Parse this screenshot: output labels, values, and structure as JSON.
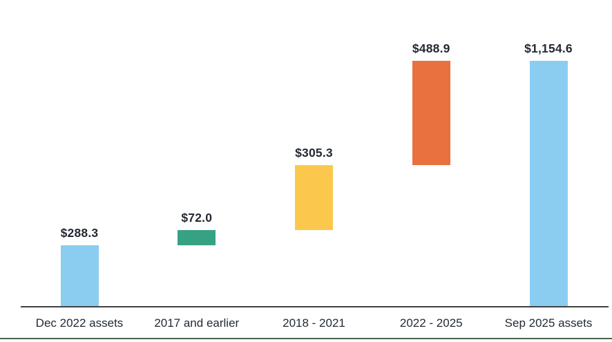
{
  "chart_data": {
    "type": "bar",
    "subtype": "waterfall",
    "title": "",
    "categories": [
      "Dec 2022 assets",
      "2017 and earlier",
      "2018 - 2021",
      "2022 - 2025",
      "Sep 2025 assets"
    ],
    "series": [
      {
        "name": "Assets",
        "values": [
          288.3,
          72.0,
          305.3,
          488.9,
          1154.6
        ]
      }
    ],
    "bars": [
      {
        "category": "Dec 2022 assets",
        "value": 288.3,
        "label": "$288.3",
        "kind": "total",
        "color": "#8BCDF0"
      },
      {
        "category": "2017 and earlier",
        "value": 72.0,
        "label": "$72.0",
        "kind": "increase",
        "color": "#37A183"
      },
      {
        "category": "2018 - 2021",
        "value": 305.3,
        "label": "$305.3",
        "kind": "increase",
        "color": "#FBC84D"
      },
      {
        "category": "2022 - 2025",
        "value": 488.9,
        "label": "$488.9",
        "kind": "increase",
        "color": "#E97140"
      },
      {
        "category": "Sep 2025 assets",
        "value": 1154.6,
        "label": "$1,154.6",
        "kind": "total",
        "color": "#8BCDF0"
      }
    ],
    "xlabel": "",
    "ylabel": "",
    "ylim": [
      0,
      1185
    ],
    "grid": false,
    "legend": false,
    "axis": {
      "baseline_color": "#3F4040",
      "bottom_rule_color": "#466352",
      "label_color": "#232A33"
    }
  }
}
